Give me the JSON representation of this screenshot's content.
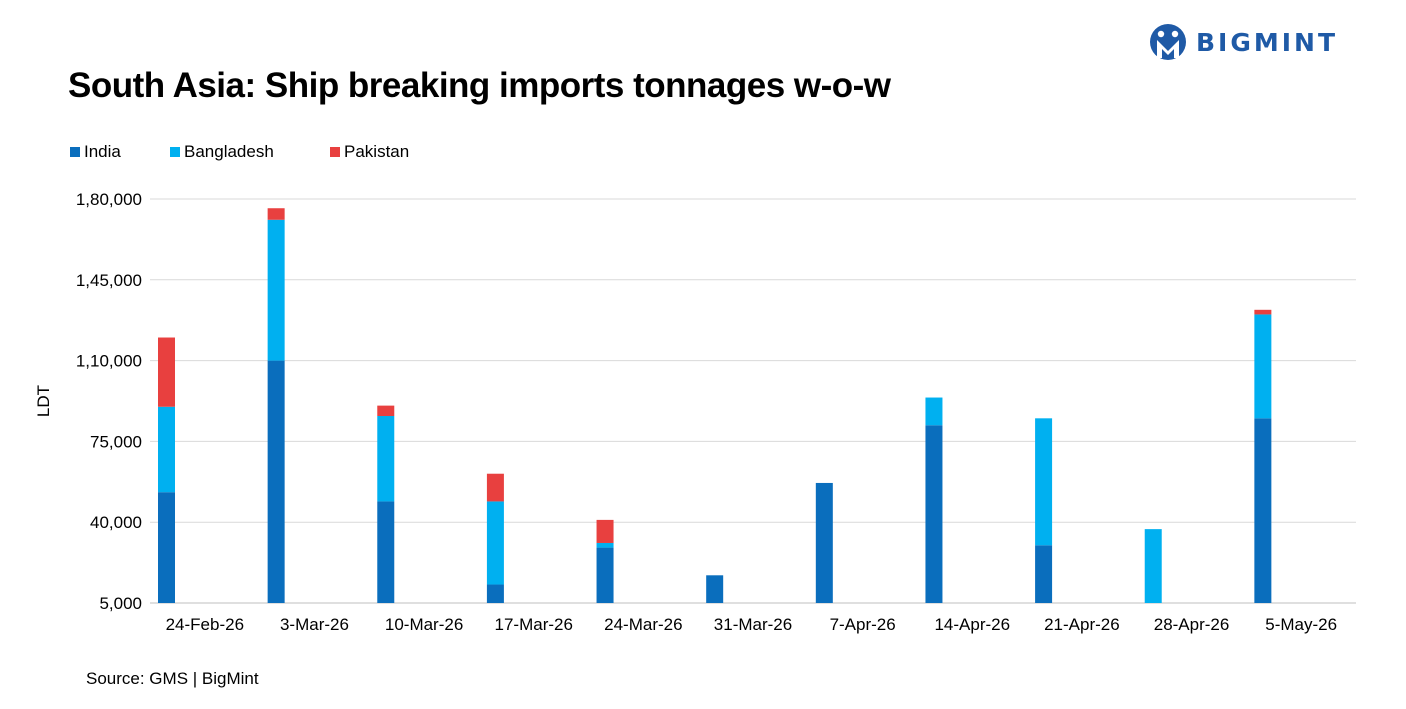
{
  "brand": {
    "name": "BIGMINT",
    "color": "#1f5aa6"
  },
  "source": "Source: GMS | BigMint",
  "chart_data": {
    "type": "bar",
    "stacked": true,
    "title": "South Asia: Ship breaking imports tonnages w-o-w",
    "xlabel": "",
    "ylabel": "LDT",
    "ylim": [
      5000,
      180000
    ],
    "yticks": [
      5000,
      40000,
      75000,
      110000,
      145000,
      180000
    ],
    "ytick_labels": [
      "5,000",
      "40,000",
      "75,000",
      "1,10,000",
      "1,45,000",
      "1,80,000"
    ],
    "grid": true,
    "legend_position": "top-left",
    "categories": [
      "24-Feb-26",
      "3-Mar-26",
      "10-Mar-26",
      "17-Mar-26",
      "24-Mar-26",
      "31-Mar-26",
      "7-Apr-26",
      "14-Apr-26",
      "21-Apr-26",
      "28-Apr-26",
      "5-May-26"
    ],
    "series": [
      {
        "name": "India",
        "color": "#0a6ebd",
        "values": [
          48000,
          105000,
          44000,
          8000,
          24000,
          12000,
          52000,
          77000,
          25000,
          0,
          80000
        ]
      },
      {
        "name": "Bangladesh",
        "color": "#00b0f0",
        "values": [
          37000,
          61000,
          37000,
          36000,
          2000,
          0,
          0,
          12000,
          55000,
          32000,
          45000
        ]
      },
      {
        "name": "Pakistan",
        "color": "#e8403f",
        "values": [
          30000,
          5000,
          4500,
          12000,
          10000,
          0,
          0,
          0,
          0,
          0,
          2000
        ]
      }
    ]
  }
}
